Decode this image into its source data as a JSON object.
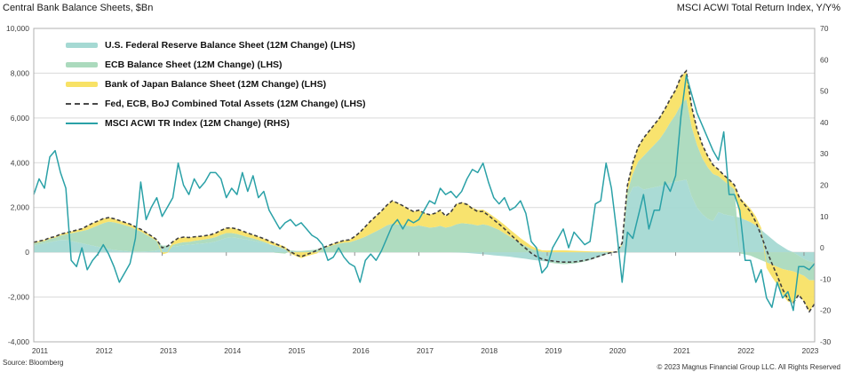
{
  "header": {
    "left_title": "Central Bank Balance Sheets, $Bn",
    "right_title": "MSCI ACWI Total Return Index, Y/Y%"
  },
  "footer": {
    "source": "Source: Bloomberg",
    "copyright": "© 2023 Magnus Financial Group LLC. All Rights Reserved"
  },
  "chart_data": {
    "type": "area",
    "subtype": "stacked-area with two overlay lines, dual axis",
    "x_start": "2011-01",
    "x_end": "2023-03",
    "x_tick_years": [
      2011,
      2012,
      2013,
      2014,
      2015,
      2016,
      2017,
      2018,
      2019,
      2020,
      2021,
      2022,
      2023
    ],
    "left_axis": {
      "title": "Central Bank Balance Sheets, $Bn",
      "min": -4000,
      "max": 10000,
      "tick_step": 2000,
      "tick_labels": [
        "10,000",
        "8,000",
        "6,000",
        "4,000",
        "2,000",
        "0",
        "-2,000",
        "-4,000"
      ]
    },
    "right_axis": {
      "title": "MSCI ACWI Total Return Index, Y/Y%",
      "min": -30,
      "max": 70,
      "tick_step": 10,
      "tick_labels": [
        "70",
        "60",
        "50",
        "40",
        "30",
        "20",
        "10",
        "0",
        "-10",
        "-20",
        "-30"
      ]
    },
    "grid": {
      "color": "#d9d9d9",
      "border_color": "#b0b0b0",
      "zero_tick_color": "#8f8f8f"
    },
    "series": [
      {
        "id": "fed",
        "label": "U.S. Federal Reserve Balance Sheet (12M Change) (LHS)",
        "type": "area",
        "axis": "left",
        "color": "#a5d9d3",
        "values": [
          300,
          350,
          400,
          450,
          500,
          550,
          550,
          500,
          450,
          400,
          350,
          300,
          250,
          200,
          150,
          100,
          80,
          60,
          40,
          30,
          30,
          40,
          50,
          80,
          150,
          200,
          250,
          280,
          320,
          340,
          360,
          380,
          400,
          430,
          480,
          560,
          640,
          660,
          640,
          600,
          560,
          520,
          470,
          420,
          360,
          300,
          220,
          140,
          60,
          20,
          0,
          0,
          0,
          0,
          0,
          0,
          0,
          0,
          0,
          0,
          0,
          0,
          0,
          0,
          0,
          0,
          0,
          0,
          0,
          0,
          0,
          0,
          0,
          0,
          0,
          0,
          0,
          0,
          0,
          -10,
          -20,
          -30,
          -50,
          -70,
          -90,
          -110,
          -140,
          -160,
          -180,
          -200,
          -230,
          -260,
          -290,
          -330,
          -360,
          -390,
          -410,
          -420,
          -430,
          -440,
          -430,
          -420,
          -390,
          -350,
          -300,
          -220,
          -150,
          -80,
          -30,
          0,
          300,
          2400,
          2900,
          2950,
          2800,
          2850,
          2900,
          2950,
          3000,
          3100,
          3150,
          3200,
          3250,
          2500,
          2000,
          1700,
          1500,
          1400,
          1800,
          1700,
          1650,
          1600,
          1550,
          1450,
          1350,
          1200,
          1000,
          800,
          600,
          400,
          250,
          100,
          0,
          -150,
          -300,
          -400,
          -450
        ]
      },
      {
        "id": "ecb",
        "label": "ECB Balance Sheet (12M Change) (LHS)",
        "type": "area",
        "axis": "left",
        "color": "#abdabd",
        "values": [
          100,
          100,
          100,
          150,
          150,
          200,
          250,
          350,
          450,
          550,
          650,
          800,
          950,
          1100,
          1220,
          1240,
          1200,
          1150,
          1100,
          1000,
          900,
          750,
          600,
          420,
          150,
          100,
          80,
          120,
          130,
          120,
          150,
          160,
          180,
          190,
          200,
          220,
          220,
          200,
          180,
          150,
          120,
          100,
          80,
          50,
          20,
          -20,
          -40,
          -60,
          30,
          40,
          60,
          80,
          100,
          140,
          190,
          250,
          320,
          380,
          430,
          440,
          520,
          600,
          700,
          820,
          940,
          1060,
          1200,
          1280,
          1250,
          1220,
          1180,
          1150,
          1200,
          1150,
          1100,
          1120,
          1180,
          1100,
          1150,
          1250,
          1300,
          1280,
          1250,
          1200,
          1250,
          1200,
          1100,
          1000,
          850,
          700,
          550,
          400,
          280,
          160,
          80,
          20,
          -30,
          -60,
          -80,
          -90,
          -90,
          -80,
          -70,
          -60,
          -50,
          -40,
          -30,
          -20,
          -10,
          0,
          50,
          300,
          600,
          1100,
          1500,
          1700,
          1900,
          2100,
          2400,
          2700,
          3000,
          3400,
          3600,
          3100,
          2800,
          2500,
          2300,
          2100,
          1600,
          1500,
          1350,
          1200,
          -50,
          -100,
          -150,
          -250,
          -350,
          -450,
          -550,
          -650,
          -750,
          -800,
          -850,
          -800,
          -750,
          -850,
          -800
        ]
      },
      {
        "id": "boj",
        "label": "Bank of Japan Balance Sheet (12M Change) (LHS)",
        "type": "area",
        "axis": "left",
        "color": "#f8e266",
        "values": [
          50,
          50,
          50,
          50,
          50,
          60,
          70,
          80,
          90,
          100,
          180,
          200,
          200,
          200,
          180,
          160,
          140,
          130,
          120,
          110,
          100,
          90,
          80,
          60,
          -100,
          -30,
          140,
          230,
          230,
          200,
          180,
          170,
          160,
          160,
          180,
          200,
          220,
          230,
          220,
          200,
          180,
          160,
          150,
          140,
          130,
          120,
          120,
          110,
          -60,
          -170,
          -260,
          -180,
          -110,
          -50,
          10,
          40,
          60,
          80,
          100,
          115,
          180,
          300,
          450,
          580,
          680,
          780,
          900,
          1020,
          950,
          860,
          760,
          670,
          680,
          600,
          580,
          620,
          700,
          520,
          660,
          900,
          930,
          890,
          750,
          690,
          660,
          560,
          490,
          420,
          380,
          320,
          280,
          230,
          180,
          130,
          90,
          70,
          80,
          90,
          90,
          90,
          80,
          70,
          60,
          50,
          40,
          30,
          30,
          30,
          30,
          20,
          60,
          300,
          500,
          650,
          800,
          850,
          900,
          950,
          1000,
          1050,
          1100,
          1250,
          1250,
          900,
          700,
          600,
          500,
          400,
          300,
          250,
          250,
          200,
          900,
          750,
          600,
          400,
          100,
          -250,
          -550,
          -800,
          -1150,
          -1400,
          -1400,
          -950,
          -1150,
          -1400,
          -1050
        ]
      },
      {
        "id": "combined",
        "label": "Fed, ECB, BoJ Combined Total Assets (12M Change) (LHS)",
        "type": "dashed-line",
        "axis": "left",
        "color": "#3f3f3f",
        "values": [
          450,
          500,
          550,
          650,
          700,
          810,
          870,
          930,
          990,
          1050,
          1180,
          1300,
          1400,
          1500,
          1550,
          1500,
          1420,
          1340,
          1260,
          1140,
          1030,
          880,
          730,
          560,
          200,
          270,
          470,
          630,
          680,
          660,
          690,
          710,
          740,
          780,
          860,
          980,
          1080,
          1090,
          1040,
          950,
          860,
          780,
          700,
          610,
          510,
          400,
          300,
          190,
          30,
          -110,
          -200,
          -100,
          -10,
          90,
          200,
          290,
          380,
          460,
          530,
          555,
          700,
          900,
          1150,
          1400,
          1620,
          1840,
          2100,
          2300,
          2200,
          2080,
          1940,
          1820,
          1880,
          1750,
          1680,
          1740,
          1880,
          1620,
          1810,
          2140,
          2210,
          2140,
          1950,
          1820,
          1820,
          1650,
          1450,
          1260,
          1050,
          820,
          600,
          370,
          170,
          -40,
          -190,
          -300,
          -360,
          -390,
          -420,
          -440,
          -440,
          -430,
          -400,
          -360,
          -310,
          -230,
          -150,
          -70,
          -10,
          20,
          410,
          3000,
          4000,
          4700,
          5100,
          5400,
          5700,
          6000,
          6400,
          6850,
          7250,
          7850,
          8100,
          6500,
          5500,
          4800,
          4300,
          3900,
          3700,
          3450,
          3250,
          3000,
          2400,
          2100,
          1800,
          1350,
          750,
          100,
          -500,
          -1050,
          -1650,
          -2100,
          -2250,
          -1900,
          -2200,
          -2650,
          -2300
        ]
      },
      {
        "id": "msci",
        "label": "MSCI ACWI TR Index (12M Change) (RHS)",
        "type": "line",
        "axis": "right",
        "color": "#2aa1a7",
        "values": [
          17,
          22,
          19,
          29,
          31,
          24,
          19,
          -4,
          -6,
          0,
          -7,
          -4,
          -2,
          1,
          -2,
          -6,
          -11,
          -8,
          -5,
          3,
          21,
          9,
          13,
          16,
          10,
          13,
          16,
          27,
          20,
          17,
          22,
          19,
          21,
          24,
          24,
          22,
          16,
          19,
          17,
          24,
          18,
          23,
          16,
          18,
          12,
          9,
          6,
          8,
          9,
          7,
          8,
          6,
          4,
          3,
          1,
          -4,
          -3,
          0,
          -3,
          -5,
          -6,
          -11,
          -4,
          -2,
          -4,
          -1,
          3,
          7,
          9,
          6,
          9,
          8,
          9,
          12,
          15,
          14,
          19,
          17,
          18,
          16,
          18,
          22,
          25,
          24,
          27,
          21,
          16,
          14,
          16,
          12,
          13,
          15,
          11,
          2,
          0,
          -8,
          -6,
          0,
          3,
          6,
          0,
          5,
          3,
          1,
          2,
          14,
          15,
          27,
          19,
          5,
          -11,
          5,
          3,
          10,
          17,
          6,
          12,
          12,
          21,
          18,
          23,
          42,
          55,
          49,
          43,
          39,
          35,
          31,
          28,
          37,
          17,
          17,
          12,
          -4,
          -4,
          -11,
          -7,
          -16,
          -19,
          -11,
          -16,
          -14,
          -20,
          -6,
          -6,
          -7,
          -5
        ]
      }
    ]
  }
}
